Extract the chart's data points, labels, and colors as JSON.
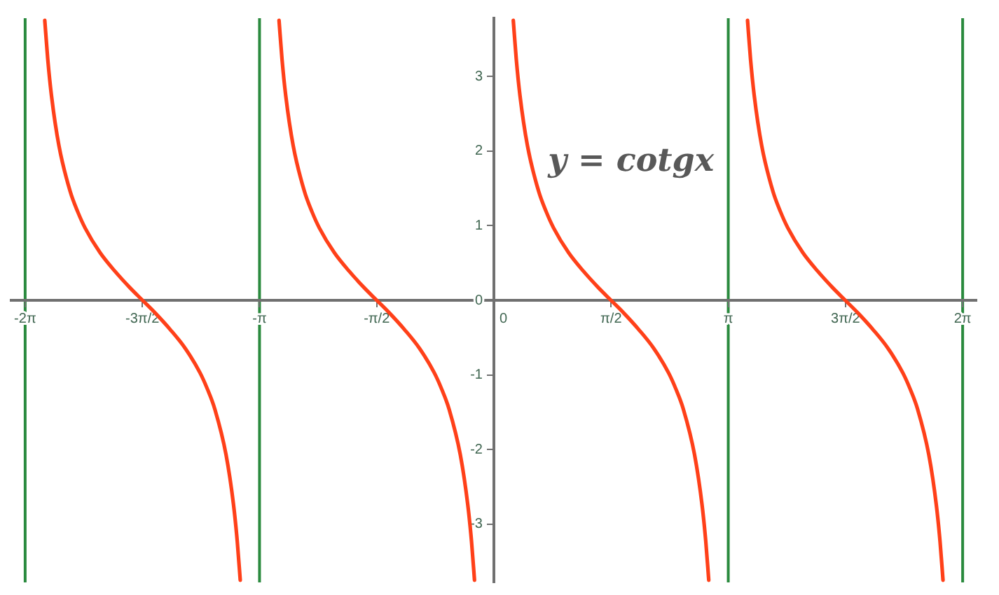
{
  "chart_data": {
    "type": "line",
    "color": "#ff4019",
    "marker": "none",
    "legend": false,
    "grid": false,
    "x": [
      -6.02,
      -5.98,
      -5.93,
      -5.83,
      -5.68,
      -5.58,
      -5.48,
      -5.28,
      -5.08,
      -4.88,
      -4.71,
      -4.54,
      -4.34,
      -4.14,
      -3.94,
      -3.84,
      -3.74,
      -3.59,
      -3.49,
      -3.44,
      -3.4,
      -3.14,
      -2.88,
      -2.84,
      -2.79,
      -2.69,
      -2.54,
      -2.44,
      -2.34,
      -2.14,
      -1.94,
      -1.74,
      -1.57,
      -1.4,
      -1.2,
      -1.0,
      -0.8,
      -0.7,
      -0.6,
      -0.45,
      -0.35,
      -0.3,
      -0.26,
      0,
      0.26,
      0.3,
      0.35,
      0.45,
      0.6,
      0.7,
      0.8,
      1.0,
      1.2,
      1.4,
      1.57,
      1.74,
      1.94,
      2.14,
      2.34,
      2.44,
      2.54,
      2.69,
      2.79,
      2.84,
      2.88,
      3.14,
      3.4,
      3.44,
      3.49,
      3.59,
      3.74,
      3.84,
      3.94,
      4.14,
      4.34,
      4.54,
      4.71,
      4.88,
      5.08,
      5.28,
      5.48,
      5.58,
      5.68,
      5.83,
      5.93,
      5.98,
      6.02
    ],
    "values": [
      3.75,
      3.23,
      2.74,
      2.07,
      1.46,
      1.19,
      0.97,
      0.64,
      0.39,
      0.17,
      0,
      -0.17,
      -0.39,
      -0.64,
      -0.97,
      -1.19,
      -1.46,
      -2.07,
      -2.74,
      -3.23,
      -3.75,
      null,
      3.75,
      3.23,
      2.74,
      2.07,
      1.46,
      1.19,
      0.97,
      0.64,
      0.39,
      0.17,
      0,
      -0.17,
      -0.39,
      -0.64,
      -0.97,
      -1.19,
      -1.46,
      -2.07,
      -2.74,
      -3.23,
      -3.75,
      null,
      3.75,
      3.23,
      2.74,
      2.07,
      1.46,
      1.19,
      0.97,
      0.64,
      0.39,
      0.17,
      0,
      -0.17,
      -0.39,
      -0.64,
      -0.97,
      -1.19,
      -1.46,
      -2.07,
      -2.74,
      -3.23,
      -3.75,
      null,
      3.75,
      3.23,
      2.74,
      2.07,
      1.46,
      1.19,
      0.97,
      0.64,
      0.39,
      0.17,
      0,
      -0.17,
      -0.39,
      -0.64,
      -0.97,
      -1.19,
      -1.46,
      -2.07,
      -2.74,
      -3.23,
      -3.75
    ],
    "xlim": [
      -6.47,
      6.47
    ],
    "ylim": [
      -3.78,
      3.78
    ],
    "xticks": [
      {
        "value": -6.2832,
        "label": "-2π"
      },
      {
        "value": -4.7124,
        "label": "-3π/2"
      },
      {
        "value": -3.1416,
        "label": "-π"
      },
      {
        "value": -1.5708,
        "label": "-π/2"
      },
      0,
      {
        "value": 1.5708,
        "label": "π/2"
      },
      {
        "value": 3.1416,
        "label": "π"
      },
      {
        "value": 4.7124,
        "label": "3π/2"
      },
      {
        "value": 6.2832,
        "label": "2π"
      }
    ],
    "yticks": [
      -3,
      -2,
      -1,
      0,
      1,
      2,
      3
    ],
    "ref_lines": [
      {
        "axis": "x",
        "value": -6.2832,
        "color": "#2a8a3e"
      },
      {
        "axis": "x",
        "value": -3.1416,
        "color": "#2a8a3e"
      },
      {
        "axis": "x",
        "value": 3.1416,
        "color": "#2a8a3e"
      },
      {
        "axis": "x",
        "value": 6.2832,
        "color": "#2a8a3e"
      }
    ],
    "annotations": [
      "y = cotgx"
    ]
  }
}
